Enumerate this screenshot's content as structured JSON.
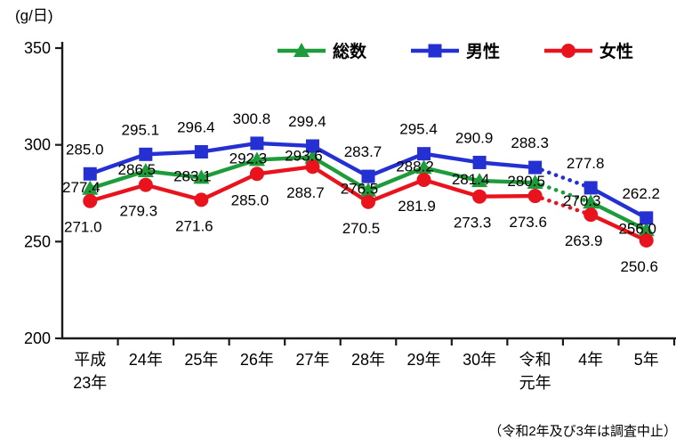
{
  "chart_data": {
    "type": "line",
    "title": "",
    "unit_label": "(g/日)",
    "note": "（令和2年及び3年は調査中止）",
    "xlabel": "",
    "ylabel": "g/日",
    "ylim": [
      200,
      350
    ],
    "yticks": [
      200,
      250,
      300,
      350
    ],
    "grid": false,
    "legend_position": "top",
    "categories": [
      "平成\n23年",
      "24年",
      "25年",
      "26年",
      "27年",
      "28年",
      "29年",
      "30年",
      "令和\n元年",
      "4年",
      "5年"
    ],
    "series": [
      {
        "key": "total",
        "name": "総数",
        "color": "#1e9b3b",
        "marker": "triangle",
        "values": [
          277.4,
          286.5,
          283.1,
          292.3,
          293.6,
          276.5,
          288.2,
          281.4,
          280.5,
          270.3,
          256.0
        ]
      },
      {
        "key": "male",
        "name": "男性",
        "color": "#2430d2",
        "marker": "square",
        "values": [
          285.0,
          295.1,
          296.4,
          300.8,
          299.4,
          283.7,
          295.4,
          290.9,
          288.3,
          277.8,
          262.2
        ]
      },
      {
        "key": "female",
        "name": "女性",
        "color": "#e8131d",
        "marker": "circle",
        "values": [
          271.0,
          279.3,
          271.6,
          285.0,
          288.7,
          270.5,
          281.9,
          273.3,
          273.6,
          263.9,
          250.6
        ]
      }
    ],
    "gap_segment": {
      "from_index": 8,
      "to_index": 9,
      "style": "dotted"
    },
    "axis_color": "#1a1a1a",
    "label_color": "#000000"
  }
}
